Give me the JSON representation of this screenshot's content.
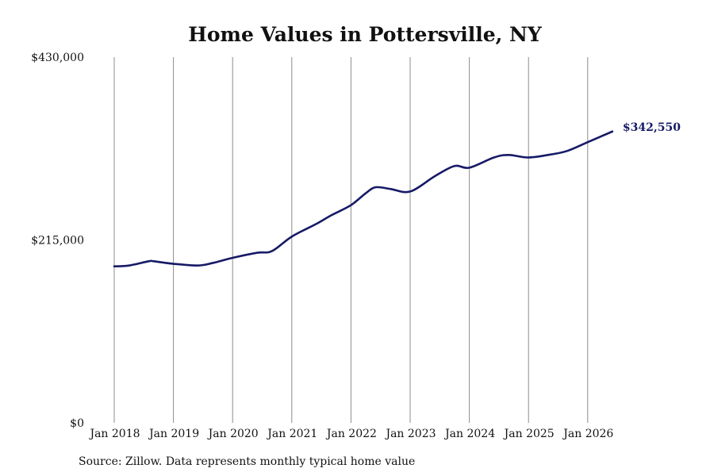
{
  "chart_data": {
    "type": "line",
    "title": "Home Values in Pottersville, NY",
    "source": "Source: Zillow. Data represents monthly typical home value",
    "x_tick_labels": [
      "Jan 2018",
      "Jan 2019",
      "Jan 2020",
      "Jan 2021",
      "Jan 2022",
      "Jan 2023",
      "Jan 2024",
      "Jan 2025",
      "Jan 2026"
    ],
    "x_tick_years": [
      2018,
      2019,
      2020,
      2021,
      2022,
      2023,
      2024,
      2025,
      2026
    ],
    "y_tick_labels": [
      "$0",
      "$215,000",
      "$430,000"
    ],
    "y_tick_values": [
      0,
      215000,
      430000
    ],
    "ylim": [
      0,
      430000
    ],
    "grid": "vertical",
    "series": [
      {
        "color": "#161a66",
        "end_label": "$342,550",
        "points": [
          [
            "2018-01",
            184000
          ],
          [
            "2018-04",
            185000
          ],
          [
            "2018-08",
            190000
          ],
          [
            "2018-09",
            190000
          ],
          [
            "2019-01",
            187000
          ],
          [
            "2019-06",
            185000
          ],
          [
            "2019-09",
            188000
          ],
          [
            "2020-01",
            194000
          ],
          [
            "2020-06",
            200000
          ],
          [
            "2020-09",
            202000
          ],
          [
            "2021-01",
            219000
          ],
          [
            "2021-06",
            234000
          ],
          [
            "2021-09",
            244000
          ],
          [
            "2022-01",
            256000
          ],
          [
            "2022-04",
            270000
          ],
          [
            "2022-06",
            277000
          ],
          [
            "2022-09",
            275000
          ],
          [
            "2023-01",
            272000
          ],
          [
            "2023-06",
            290000
          ],
          [
            "2023-10",
            302000
          ],
          [
            "2024-01",
            300000
          ],
          [
            "2024-06",
            312000
          ],
          [
            "2024-09",
            315000
          ],
          [
            "2025-01",
            312000
          ],
          [
            "2025-06",
            316000
          ],
          [
            "2025-09",
            320000
          ],
          [
            "2026-01",
            330000
          ],
          [
            "2026-06",
            342550
          ]
        ]
      }
    ]
  }
}
